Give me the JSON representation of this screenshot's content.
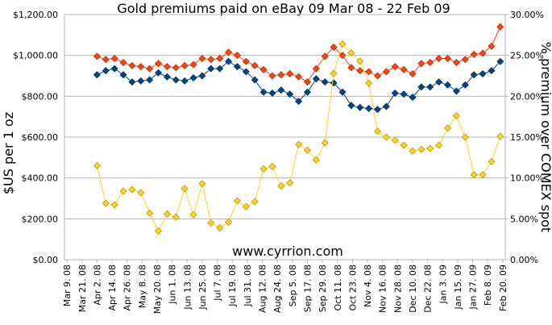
{
  "chart_data": {
    "type": "line",
    "title": "Gold premiums paid on eBay 09 Mar 08 - 22 Feb 09",
    "y_label": "$US per 1 oz",
    "y2_label": "% premium over COMEX spot",
    "annotation": "www.cyrrion.com",
    "grid": true,
    "x": [
      "2008-04-02",
      "2008-04-09",
      "2008-04-16",
      "2008-04-23",
      "2008-04-30",
      "2008-05-07",
      "2008-05-14",
      "2008-05-21",
      "2008-05-28",
      "2008-06-04",
      "2008-06-11",
      "2008-06-18",
      "2008-06-25",
      "2008-07-02",
      "2008-07-09",
      "2008-07-16",
      "2008-07-23",
      "2008-07-30",
      "2008-08-06",
      "2008-08-13",
      "2008-08-20",
      "2008-08-27",
      "2008-09-03",
      "2008-09-10",
      "2008-09-17",
      "2008-09-24",
      "2008-10-01",
      "2008-10-08",
      "2008-10-15",
      "2008-10-22",
      "2008-10-29",
      "2008-11-05",
      "2008-11-12",
      "2008-11-19",
      "2008-11-26",
      "2008-12-03",
      "2008-12-10",
      "2008-12-17",
      "2008-12-24",
      "2008-12-31",
      "2009-01-07",
      "2009-01-14",
      "2009-01-21",
      "2009-01-28",
      "2009-02-04",
      "2009-02-11",
      "2009-02-18"
    ],
    "xlim": [
      "2008-03-07",
      "2009-02-22"
    ],
    "xticks": [
      {
        "value": "2008-03-09",
        "label": "Mar 9. 08"
      },
      {
        "value": "2008-03-21",
        "label": "Mar 21. 08"
      },
      {
        "value": "2008-04-02",
        "label": "Apr 2. 08"
      },
      {
        "value": "2008-04-14",
        "label": "Apr 14. 08"
      },
      {
        "value": "2008-04-26",
        "label": "Apr 26. 08"
      },
      {
        "value": "2008-05-08",
        "label": "May 8. 08"
      },
      {
        "value": "2008-05-20",
        "label": "May 20. 08"
      },
      {
        "value": "2008-06-01",
        "label": "Jun 1. 08"
      },
      {
        "value": "2008-06-13",
        "label": "Jun 13. 08"
      },
      {
        "value": "2008-06-25",
        "label": "Jun 25. 08"
      },
      {
        "value": "2008-07-07",
        "label": "Jul 7. 08"
      },
      {
        "value": "2008-07-19",
        "label": "Jul 19. 08"
      },
      {
        "value": "2008-07-31",
        "label": "Jul 31. 08"
      },
      {
        "value": "2008-08-12",
        "label": "Aug 12. 08"
      },
      {
        "value": "2008-08-24",
        "label": "Aug 24. 08"
      },
      {
        "value": "2008-09-05",
        "label": "Sep 5. 08"
      },
      {
        "value": "2008-09-17",
        "label": "Sep 17. 08"
      },
      {
        "value": "2008-09-29",
        "label": "Sep 29. 08"
      },
      {
        "value": "2008-10-11",
        "label": "Oct 11. 08"
      },
      {
        "value": "2008-10-23",
        "label": "Oct 23. 08"
      },
      {
        "value": "2008-11-04",
        "label": "Nov 4. 08"
      },
      {
        "value": "2008-11-16",
        "label": "Nov 16. 08"
      },
      {
        "value": "2008-11-28",
        "label": "Nov 28. 08"
      },
      {
        "value": "2008-12-10",
        "label": "Dec 10. 08"
      },
      {
        "value": "2008-12-22",
        "label": "Dec 22. 08"
      },
      {
        "value": "2009-01-03",
        "label": "Jan 3. 09"
      },
      {
        "value": "2009-01-15",
        "label": "Jan 15. 09"
      },
      {
        "value": "2009-01-27",
        "label": "Jan 27. 09"
      },
      {
        "value": "2009-02-08",
        "label": "Feb 8. 09"
      },
      {
        "value": "2009-02-20",
        "label": "Feb 20. 09"
      }
    ],
    "ylim": [
      0,
      1200
    ],
    "yticks": [
      {
        "value": 0,
        "label": "$0.00"
      },
      {
        "value": 200,
        "label": "$200.00"
      },
      {
        "value": 400,
        "label": "$400.00"
      },
      {
        "value": 600,
        "label": "$600.00"
      },
      {
        "value": 800,
        "label": "$800.00"
      },
      {
        "value": 1000,
        "label": "$1,000.00"
      },
      {
        "value": 1200,
        "label": "$1,200.00"
      }
    ],
    "y2lim": [
      0,
      30
    ],
    "y2ticks": [
      {
        "value": 0,
        "label": "0.00%"
      },
      {
        "value": 5,
        "label": "5.00%"
      },
      {
        "value": 10,
        "label": "10.00%"
      },
      {
        "value": 15,
        "label": "15.00%"
      },
      {
        "value": 20,
        "label": "20.00%"
      },
      {
        "value": 25,
        "label": "25.00%"
      },
      {
        "value": 30,
        "label": "30.00%"
      }
    ],
    "series": [
      {
        "color": "#ff420e",
        "stroke": "#a02a08",
        "values": [
          995,
          980,
          985,
          965,
          950,
          945,
          935,
          960,
          945,
          940,
          950,
          955,
          985,
          980,
          985,
          1015,
          1000,
          970,
          950,
          930,
          900,
          905,
          910,
          895,
          870,
          935,
          995,
          1040,
          1000,
          940,
          925,
          920,
          900,
          920,
          945,
          930,
          910,
          960,
          965,
          985,
          985,
          965,
          980,
          1005,
          1010,
          1045,
          1140
        ]
      },
      {
        "color": "#004586",
        "stroke": "#002a52",
        "values": [
          905,
          925,
          935,
          905,
          870,
          875,
          880,
          915,
          895,
          880,
          875,
          890,
          900,
          935,
          935,
          970,
          945,
          920,
          880,
          820,
          815,
          830,
          810,
          775,
          820,
          885,
          870,
          865,
          820,
          755,
          745,
          740,
          735,
          750,
          815,
          810,
          795,
          845,
          845,
          870,
          855,
          825,
          855,
          905,
          910,
          925,
          970
        ]
      },
      {
        "color": "#ffd320",
        "stroke": "#b08a00",
        "axis": "y2",
        "values": [
          11.5,
          6.9,
          6.7,
          8.4,
          8.6,
          8.2,
          5.7,
          3.5,
          5.6,
          5.2,
          8.7,
          5.5,
          9.3,
          4.5,
          3.9,
          4.6,
          7.2,
          6.5,
          7.1,
          11.1,
          11.4,
          9.0,
          9.4,
          14.1,
          13.4,
          12.2,
          14.3,
          22.8,
          26.4,
          25.3,
          24.3,
          21.6,
          15.7,
          15.0,
          14.6,
          14.0,
          13.3,
          13.5,
          13.6,
          14.0,
          16.1,
          17.6,
          15.0,
          10.4,
          10.4,
          12.0,
          15.1
        ]
      }
    ]
  }
}
